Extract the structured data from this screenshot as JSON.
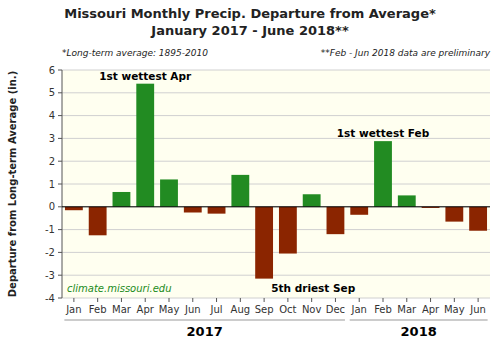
{
  "chart_data": {
    "type": "bar",
    "title": "Missouri Monthly Precip. Departure from Average*",
    "subtitle": "January 2017 - June 2018**",
    "y_label": "Departure from Long-term Average (in.)",
    "categories": [
      "Jan",
      "Feb",
      "Mar",
      "Apr",
      "May",
      "Jun",
      "Jul",
      "Aug",
      "Sep",
      "Oct",
      "Nov",
      "Dec",
      "Jan",
      "Feb",
      "Mar",
      "Apr",
      "May",
      "Jun"
    ],
    "values": [
      -0.15,
      -1.25,
      0.65,
      5.4,
      1.2,
      -0.25,
      -0.3,
      1.4,
      -3.15,
      -2.05,
      0.55,
      -1.2,
      -0.35,
      2.88,
      0.5,
      -0.05,
      -0.65,
      -1.05
    ],
    "colors": [
      "#8B2500",
      "#8B2500",
      "#228B22",
      "#228B22",
      "#228B22",
      "#8B2500",
      "#8B2500",
      "#228B22",
      "#8B2500",
      "#8B2500",
      "#228B22",
      "#8B2500",
      "#8B2500",
      "#228B22",
      "#228B22",
      "#8B2500",
      "#8B2500",
      "#8B2500"
    ],
    "ylim": [
      -4.0,
      6.0
    ],
    "yticks": [
      -4,
      -3,
      -2,
      -1,
      0,
      1,
      2,
      3,
      4,
      5,
      6
    ],
    "grid": true,
    "annotations": [
      {
        "text": "1st wettest Apr",
        "index": 3
      },
      {
        "text": "5th driest Sep",
        "index": 8
      },
      {
        "text": "1st wettest Feb",
        "index": 13
      },
      {
        "text": "*Long-term average: 1895-2010"
      },
      {
        "text": "**Feb - Jun 2018 data are preliminary"
      },
      {
        "text": "climate.missouri.edu",
        "color": "#228B22"
      },
      {
        "text": "2017",
        "from": 0,
        "to": 11
      },
      {
        "text": "2018",
        "from": 12,
        "to": 17
      }
    ]
  }
}
